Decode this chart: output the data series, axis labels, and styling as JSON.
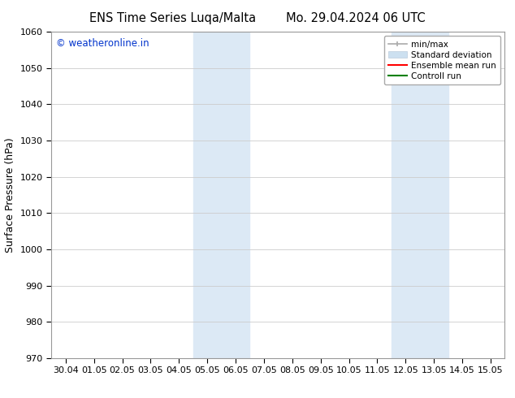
{
  "title_left": "ENS Time Series Luqa/Malta",
  "title_right": "Mo. 29.04.2024 06 UTC",
  "ylabel": "Surface Pressure (hPa)",
  "ylim": [
    970,
    1060
  ],
  "yticks": [
    970,
    980,
    990,
    1000,
    1010,
    1020,
    1030,
    1040,
    1050,
    1060
  ],
  "xtick_labels": [
    "30.04",
    "01.05",
    "02.05",
    "03.05",
    "04.05",
    "05.05",
    "06.05",
    "07.05",
    "08.05",
    "09.05",
    "10.05",
    "11.05",
    "12.05",
    "13.05",
    "14.05",
    "15.05"
  ],
  "xlim": [
    -0.5,
    15.5
  ],
  "shaded_regions": [
    {
      "xstart": 4.5,
      "xend": 6.5,
      "color": "#dce9f5"
    },
    {
      "xstart": 11.5,
      "xend": 13.5,
      "color": "#dce9f5"
    }
  ],
  "watermark_text": "© weatheronline.in",
  "watermark_color": "#0033cc",
  "background_color": "#ffffff",
  "grid_color": "#cccccc",
  "title_fontsize": 10.5,
  "label_fontsize": 9,
  "tick_fontsize": 8
}
